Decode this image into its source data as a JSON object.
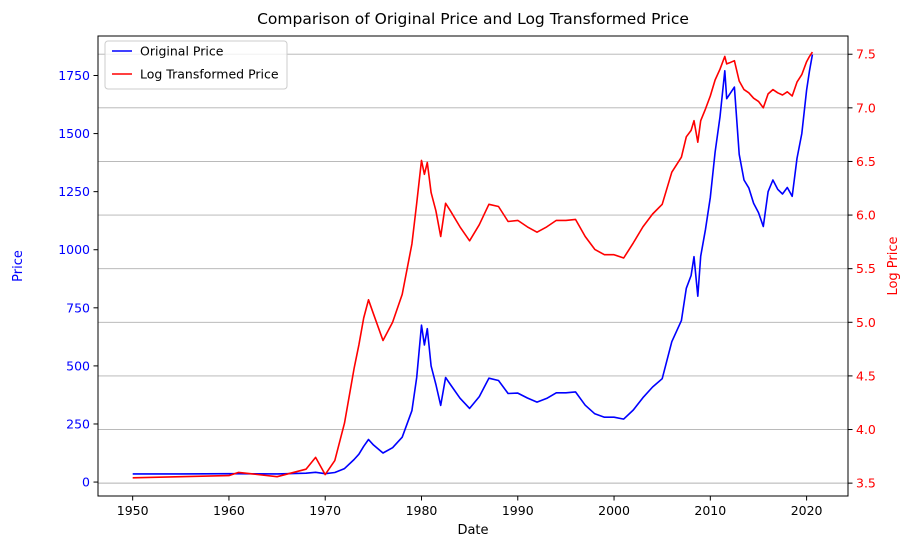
{
  "chart_data": {
    "type": "line",
    "title": "Comparison of Original Price and Log Transformed Price",
    "xlabel": "Date",
    "ylabel": "Price",
    "y2label": "Log Price",
    "xlim": [
      1946.4,
      2024.3
    ],
    "ylim": [
      -60,
      1920
    ],
    "y2lim": [
      3.38,
      7.67
    ],
    "xticks": [
      1950,
      1960,
      1970,
      1980,
      1990,
      2000,
      2010,
      2020
    ],
    "yticks": [
      0,
      250,
      500,
      750,
      1000,
      1250,
      1500,
      1750
    ],
    "y2ticks": [
      3.5,
      4.0,
      4.5,
      5.0,
      5.5,
      6.0,
      6.5,
      7.0,
      7.5
    ],
    "grid": "right-axis horizontal",
    "legend_position": "top-left",
    "colors": {
      "original": "#0000ff",
      "log": "#ff0000",
      "grid": "#b0b0b0"
    },
    "series": [
      {
        "name": "Original Price",
        "axis": "left",
        "color": "#0000ff",
        "x": [
          1950,
          1955,
          1960,
          1965,
          1968,
          1969,
          1970,
          1971,
          1972,
          1973,
          1973.5,
          1974,
          1974.5,
          1975,
          1976,
          1977,
          1978,
          1979,
          1979.5,
          1980,
          1980.3,
          1980.6,
          1981,
          1981.5,
          1982,
          1982.5,
          1983,
          1984,
          1985,
          1986,
          1987,
          1988,
          1989,
          1990,
          1991,
          1992,
          1993,
          1994,
          1995,
          1996,
          1997,
          1998,
          1999,
          2000,
          2001,
          2002,
          2003,
          2004,
          2005,
          2006,
          2007,
          2007.5,
          2008,
          2008.3,
          2008.7,
          2009,
          2009.5,
          2010,
          2010.5,
          2011,
          2011.5,
          2011.7,
          2012,
          2012.5,
          2013,
          2013.5,
          2014,
          2014.5,
          2015,
          2015.5,
          2016,
          2016.5,
          2017,
          2017.5,
          2018,
          2018.5,
          2019,
          2019.5,
          2020,
          2020.3,
          2020.6
        ],
        "values": [
          35,
          35,
          36,
          35,
          38,
          42,
          36,
          41,
          58,
          97,
          120,
          154,
          183,
          160,
          125,
          148,
          193,
          307,
          450,
          675,
          590,
          660,
          500,
          420,
          330,
          450,
          420,
          361,
          317,
          368,
          447,
          437,
          381,
          383,
          362,
          344,
          360,
          384,
          384,
          388,
          331,
          294,
          279,
          279,
          271,
          310,
          363,
          409,
          445,
          604,
          695,
          834,
          889,
          970,
          800,
          972,
          1088,
          1225,
          1420,
          1572,
          1770,
          1650,
          1669,
          1700,
          1411,
          1300,
          1266,
          1200,
          1160,
          1100,
          1250,
          1300,
          1260,
          1240,
          1268,
          1230,
          1393,
          1500,
          1687,
          1770,
          1840
        ]
      },
      {
        "name": "Log Transformed Price",
        "axis": "right",
        "color": "#ff0000",
        "x": [
          1950,
          1955,
          1960,
          1961,
          1965,
          1968,
          1969,
          1970,
          1971,
          1972,
          1973,
          1973.5,
          1974,
          1974.5,
          1975,
          1976,
          1977,
          1978,
          1979,
          1979.5,
          1980,
          1980.3,
          1980.6,
          1981,
          1981.5,
          1982,
          1982.5,
          1983,
          1984,
          1985,
          1986,
          1987,
          1988,
          1989,
          1990,
          1991,
          1992,
          1993,
          1994,
          1995,
          1996,
          1997,
          1998,
          1999,
          2000,
          2001,
          2002,
          2003,
          2004,
          2005,
          2006,
          2007,
          2007.5,
          2008,
          2008.3,
          2008.7,
          2009,
          2009.5,
          2010,
          2010.5,
          2011,
          2011.5,
          2011.7,
          2012,
          2012.5,
          2013,
          2013.5,
          2014,
          2014.5,
          2015,
          2015.5,
          2016,
          2016.5,
          2017,
          2017.5,
          2018,
          2018.5,
          2019,
          2019.5,
          2020,
          2020.3,
          2020.6
        ],
        "values": [
          3.55,
          3.56,
          3.57,
          3.6,
          3.56,
          3.63,
          3.74,
          3.58,
          3.71,
          4.06,
          4.57,
          4.79,
          5.04,
          5.21,
          5.08,
          4.83,
          5.0,
          5.26,
          5.73,
          6.11,
          6.51,
          6.38,
          6.49,
          6.21,
          6.04,
          5.8,
          6.11,
          6.04,
          5.89,
          5.76,
          5.91,
          6.1,
          6.08,
          5.94,
          5.95,
          5.89,
          5.84,
          5.89,
          5.95,
          5.95,
          5.96,
          5.8,
          5.68,
          5.63,
          5.63,
          5.6,
          5.74,
          5.89,
          6.01,
          6.1,
          6.4,
          6.54,
          6.73,
          6.79,
          6.88,
          6.68,
          6.88,
          6.99,
          7.11,
          7.26,
          7.36,
          7.48,
          7.41,
          7.42,
          7.44,
          7.25,
          7.17,
          7.14,
          7.09,
          7.06,
          7.0,
          7.13,
          7.17,
          7.14,
          7.12,
          7.15,
          7.11,
          7.24,
          7.31,
          7.43,
          7.48,
          7.52
        ]
      }
    ]
  }
}
